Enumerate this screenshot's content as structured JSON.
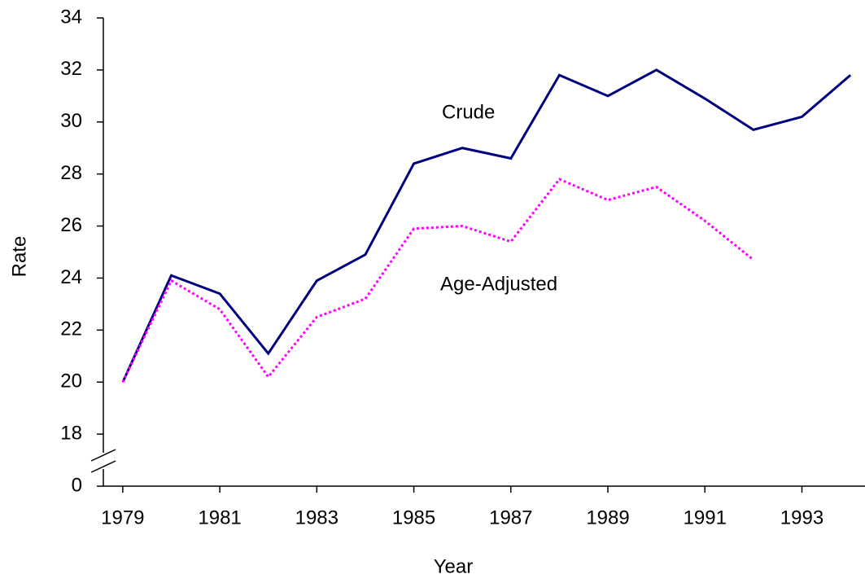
{
  "chart_data": {
    "type": "line",
    "x_label": "Year",
    "y_label": "Rate",
    "x": [
      1979,
      1980,
      1981,
      1982,
      1983,
      1984,
      1985,
      1986,
      1987,
      1988,
      1989,
      1990,
      1991,
      1992,
      1993,
      1994
    ],
    "series": [
      {
        "name": "Crude",
        "color": "#000080",
        "dash": "solid",
        "values": [
          20.0,
          24.1,
          23.4,
          21.1,
          23.9,
          24.9,
          28.4,
          29.0,
          28.6,
          31.8,
          31.0,
          32.0,
          30.9,
          29.7,
          30.2,
          31.8
        ]
      },
      {
        "name": "Age-Adjusted",
        "color": "#ff00ff",
        "dash": "dotted",
        "values": [
          20.0,
          23.9,
          22.8,
          20.2,
          22.5,
          23.2,
          25.9,
          26.0,
          25.4,
          27.8,
          27.0,
          27.5,
          26.2,
          24.7,
          null,
          null
        ]
      }
    ],
    "xlim": [
      1978.6,
      1994.3
    ],
    "xticks": [
      1979,
      1981,
      1983,
      1985,
      1987,
      1989,
      1991,
      1993
    ],
    "ylim": [
      0,
      34
    ],
    "yticks": [
      0,
      18,
      20,
      22,
      24,
      26,
      28,
      30,
      32,
      34
    ],
    "y_break": [
      0,
      16
    ],
    "grid": false
  }
}
